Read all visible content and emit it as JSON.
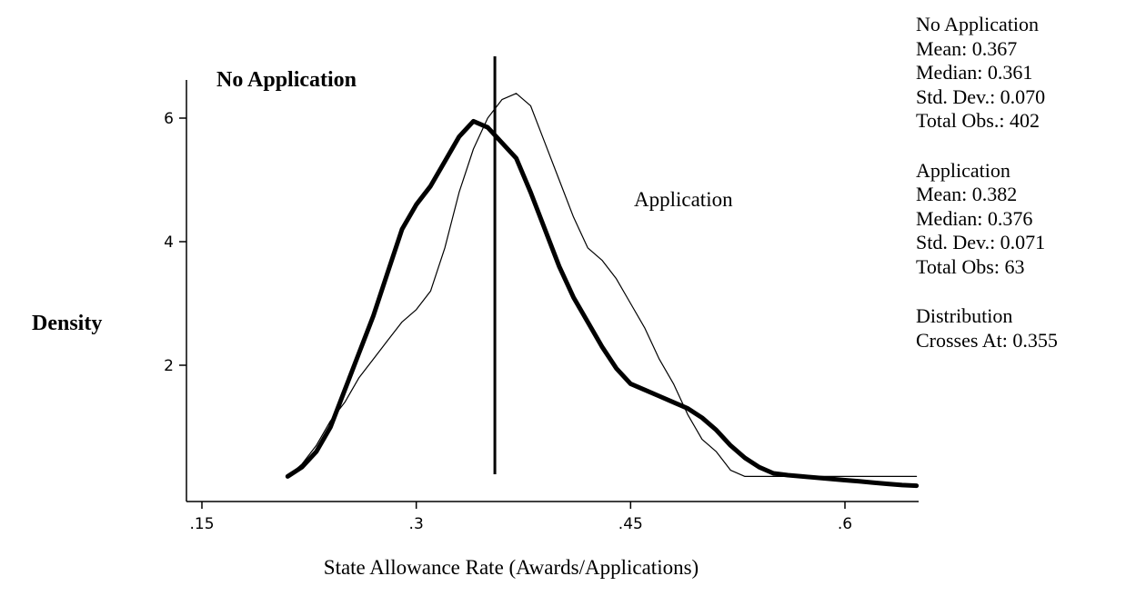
{
  "chart_data": {
    "type": "line",
    "xlabel": "State Allowance Rate (Awards/Applications)",
    "ylabel": "Density",
    "xlim": [
      0.15,
      0.65
    ],
    "ylim": [
      0,
      6.6
    ],
    "x_ticks": [
      {
        "value": 0.15,
        "label": ".15"
      },
      {
        "value": 0.3,
        "label": ".3"
      },
      {
        "value": 0.45,
        "label": ".45"
      },
      {
        "value": 0.6,
        "label": ".6"
      }
    ],
    "y_ticks": [
      {
        "value": 2,
        "label": "2"
      },
      {
        "value": 4,
        "label": "4"
      },
      {
        "value": 6,
        "label": "6"
      }
    ],
    "vertical_line": {
      "x": 0.355
    },
    "series": [
      {
        "name": "No Application",
        "style": "thick",
        "x": [
          0.21,
          0.22,
          0.23,
          0.24,
          0.25,
          0.26,
          0.27,
          0.28,
          0.29,
          0.3,
          0.31,
          0.32,
          0.33,
          0.34,
          0.35,
          0.36,
          0.37,
          0.38,
          0.39,
          0.4,
          0.41,
          0.42,
          0.43,
          0.44,
          0.45,
          0.46,
          0.47,
          0.48,
          0.49,
          0.5,
          0.51,
          0.52,
          0.53,
          0.54,
          0.55,
          0.56,
          0.57,
          0.58,
          0.59,
          0.6,
          0.61,
          0.62,
          0.63,
          0.64,
          0.65
        ],
        "values": [
          0.2,
          0.35,
          0.6,
          1.0,
          1.6,
          2.2,
          2.8,
          3.5,
          4.2,
          4.6,
          4.9,
          5.3,
          5.7,
          5.95,
          5.85,
          5.6,
          5.35,
          4.8,
          4.2,
          3.6,
          3.1,
          2.7,
          2.3,
          1.95,
          1.7,
          1.6,
          1.5,
          1.4,
          1.3,
          1.15,
          0.95,
          0.7,
          0.5,
          0.35,
          0.25,
          0.22,
          0.2,
          0.18,
          0.16,
          0.14,
          0.12,
          0.1,
          0.08,
          0.06,
          0.05
        ]
      },
      {
        "name": "Application",
        "style": "thin",
        "x": [
          0.21,
          0.22,
          0.23,
          0.24,
          0.25,
          0.26,
          0.27,
          0.28,
          0.29,
          0.3,
          0.31,
          0.32,
          0.33,
          0.34,
          0.35,
          0.36,
          0.37,
          0.38,
          0.39,
          0.4,
          0.41,
          0.42,
          0.43,
          0.44,
          0.45,
          0.46,
          0.47,
          0.48,
          0.49,
          0.5,
          0.51,
          0.52,
          0.53,
          0.54,
          0.55,
          0.56,
          0.57,
          0.58,
          0.59,
          0.6,
          0.61,
          0.62,
          0.63,
          0.64,
          0.65
        ],
        "values": [
          0.2,
          0.4,
          0.7,
          1.1,
          1.4,
          1.8,
          2.1,
          2.4,
          2.7,
          2.9,
          3.2,
          3.9,
          4.8,
          5.5,
          6.0,
          6.3,
          6.4,
          6.2,
          5.6,
          5.0,
          4.4,
          3.9,
          3.7,
          3.4,
          3.0,
          2.6,
          2.1,
          1.7,
          1.2,
          0.8,
          0.6,
          0.3,
          0.2,
          0.2,
          0.2,
          0.2,
          0.2,
          0.2,
          0.2,
          0.2,
          0.2,
          0.2,
          0.2,
          0.2,
          0.2
        ]
      }
    ],
    "annotations": {
      "no_application": "No Application",
      "application": "Application"
    }
  },
  "stats": {
    "no_application": {
      "title": "No Application",
      "mean": "Mean: 0.367",
      "median": "Median: 0.361",
      "sd": "Std. Dev.: 0.070",
      "obs": "Total Obs.: 402"
    },
    "application": {
      "title": "Application",
      "mean": "Mean: 0.382",
      "median": "Median: 0.376",
      "sd": "Std. Dev.: 0.071",
      "obs": "Total Obs: 63"
    },
    "crossing": {
      "title": "Distribution",
      "value": "Crosses At: 0.355"
    }
  }
}
